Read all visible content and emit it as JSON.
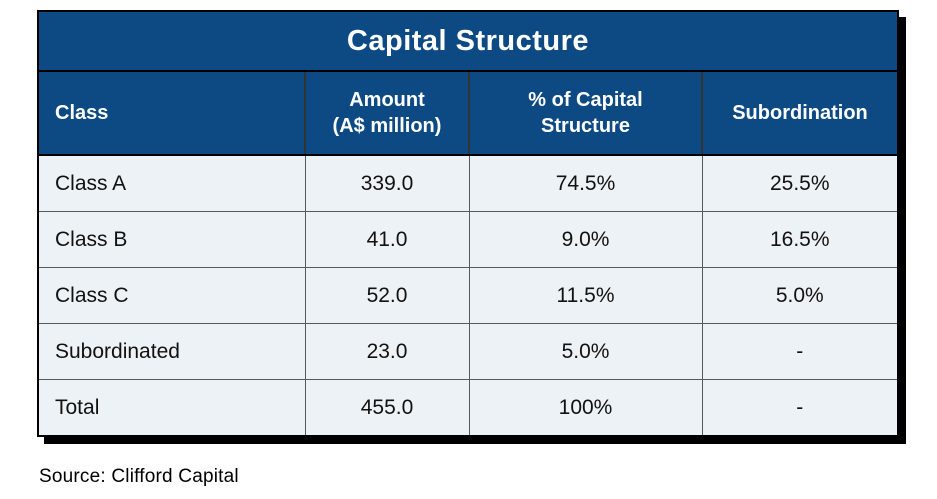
{
  "title": "Capital Structure",
  "table": {
    "columns": {
      "class": "Class",
      "amount": "Amount\n(A$ million)",
      "pct": "% of Capital\nStructure",
      "subordination": "Subordination"
    },
    "rows": [
      {
        "class": "Class A",
        "amount": "339.0",
        "pct": "74.5%",
        "subordination": "25.5%"
      },
      {
        "class": "Class B",
        "amount": "41.0",
        "pct": "9.0%",
        "subordination": "16.5%"
      },
      {
        "class": "Class C",
        "amount": "52.0",
        "pct": "11.5%",
        "subordination": "5.0%"
      },
      {
        "class": "Subordinated",
        "amount": "23.0",
        "pct": "5.0%",
        "subordination": "-"
      },
      {
        "class": "Total",
        "amount": "455.0",
        "pct": "100%",
        "subordination": "-"
      }
    ]
  },
  "source": "Source: Clifford Capital",
  "colors": {
    "header-bg": "#0d4a84",
    "header-text": "#ffffff",
    "body-bg": "#edf2f6",
    "body-text": "#111111",
    "grid": "#595959",
    "header-grid": "#333333",
    "outer-border": "#000000"
  }
}
